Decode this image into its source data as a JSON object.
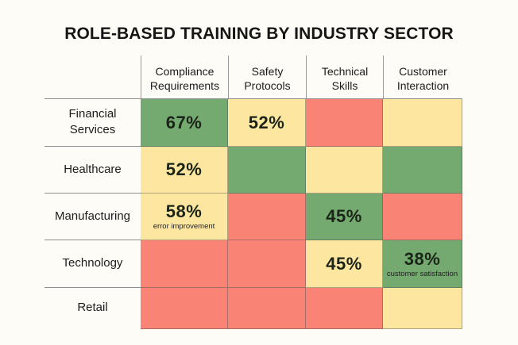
{
  "chart_data": {
    "type": "heatmap",
    "title": "ROLE-BASED TRAINING BY INDUSTRY SECTOR",
    "columns": [
      "Compliance Requirements",
      "Safety Protocols",
      "Technical Skills",
      "Customer Interaction"
    ],
    "column_lines": [
      [
        "Compliance",
        "Requirements"
      ],
      [
        "Safety",
        "Protocols"
      ],
      [
        "Technical",
        "Skills"
      ],
      [
        "Customer",
        "Interaction"
      ]
    ],
    "rows": [
      "Financial Services",
      "Healthcare",
      "Manufacturing",
      "Technology",
      "Retail"
    ],
    "row_lines": [
      [
        "Financial",
        "Services"
      ],
      [
        "Healthcare"
      ],
      [
        "Manufacturing"
      ],
      [
        "Technology"
      ],
      [
        "Retail"
      ]
    ],
    "legend_levels": {
      "high": "#74a96f",
      "medium": "#fde6a0",
      "low": "#f98374"
    },
    "cells": [
      [
        {
          "level": "high",
          "value": "67%",
          "note": ""
        },
        {
          "level": "medium",
          "value": "52%",
          "note": ""
        },
        {
          "level": "low",
          "value": "",
          "note": ""
        },
        {
          "level": "medium",
          "value": "",
          "note": ""
        }
      ],
      [
        {
          "level": "medium",
          "value": "52%",
          "note": ""
        },
        {
          "level": "high",
          "value": "",
          "note": ""
        },
        {
          "level": "medium",
          "value": "",
          "note": ""
        },
        {
          "level": "high",
          "value": "",
          "note": ""
        }
      ],
      [
        {
          "level": "medium",
          "value": "58%",
          "note": "error improvement"
        },
        {
          "level": "low",
          "value": "",
          "note": ""
        },
        {
          "level": "high",
          "value": "45%",
          "note": ""
        },
        {
          "level": "low",
          "value": "",
          "note": ""
        }
      ],
      [
        {
          "level": "low",
          "value": "",
          "note": ""
        },
        {
          "level": "low",
          "value": "",
          "note": ""
        },
        {
          "level": "medium",
          "value": "45%",
          "note": ""
        },
        {
          "level": "high",
          "value": "38%",
          "note": "customer satisfaction"
        }
      ],
      [
        {
          "level": "low",
          "value": "",
          "note": ""
        },
        {
          "level": "low",
          "value": "",
          "note": ""
        },
        {
          "level": "low",
          "value": "",
          "note": ""
        },
        {
          "level": "medium",
          "value": "",
          "note": ""
        }
      ]
    ]
  }
}
